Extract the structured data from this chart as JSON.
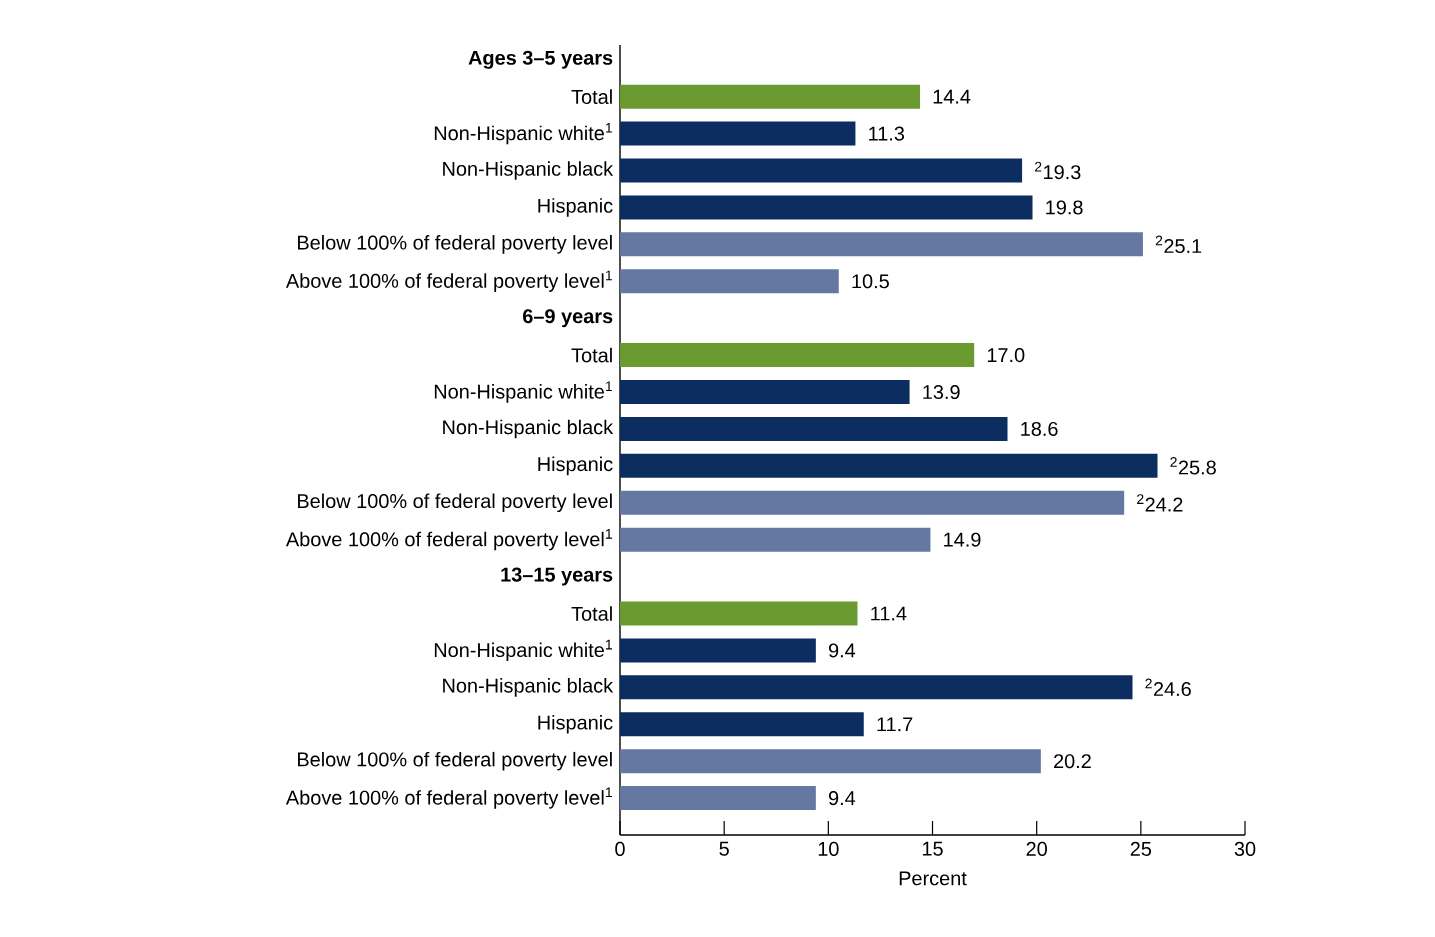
{
  "chart_data": {
    "type": "bar",
    "orientation": "horizontal",
    "categories": [
      "Ages 3–5 years",
      "Total",
      "Non-Hispanic white$^{1}$",
      "Non-Hispanic black",
      "Hispanic",
      "Below 100% of federal poverty level",
      "Above 100% of federal poverty level$^{1}$",
      "6–9 years",
      "Total",
      "Non-Hispanic white$^{1}$",
      "Non-Hispanic black",
      "Hispanic",
      "Below 100% of federal poverty level",
      "Above 100% of federal poverty level$^{1}$",
      "13–15 years",
      "Total",
      "Non-Hispanic white$^{1}$",
      "Non-Hispanic black",
      "Hispanic",
      "Below 100% of federal poverty level",
      "Above 100% of federal poverty level$^{1}$"
    ],
    "values": [
      null,
      14.4,
      11.3,
      19.3,
      19.8,
      25.1,
      10.5,
      null,
      17.0,
      13.9,
      18.6,
      25.8,
      24.2,
      14.9,
      null,
      11.4,
      9.4,
      24.6,
      11.7,
      20.2,
      9.4
    ],
    "value_labels": [
      null,
      "14.4",
      "11.3",
      "$^{2}$19.3",
      "19.8",
      "$^{2}$25.1",
      "10.5",
      null,
      "17.0",
      "13.9",
      "18.6",
      "$^{2}$25.8",
      "$^{2}$24.2",
      "14.9",
      null,
      "11.4",
      "9.4",
      "$^{2}$24.6",
      "11.7",
      "20.2",
      "9.4"
    ],
    "colors": [
      null,
      "#6b9a30",
      "#0b2d5f",
      "#0b2d5f",
      "#0b2d5f",
      "#6478a2",
      "#6478a2",
      null,
      "#6b9a30",
      "#0b2d5f",
      "#0b2d5f",
      "#0b2d5f",
      "#6478a2",
      "#6478a2",
      null,
      "#6b9a30",
      "#0b2d5f",
      "#0b2d5f",
      "#0b2d5f",
      "#6478a2",
      "#6478a2"
    ],
    "xlabel": "Percent",
    "xlim": [
      0,
      30
    ],
    "xticks": [
      0,
      5,
      10,
      15,
      20,
      25,
      30
    ]
  }
}
